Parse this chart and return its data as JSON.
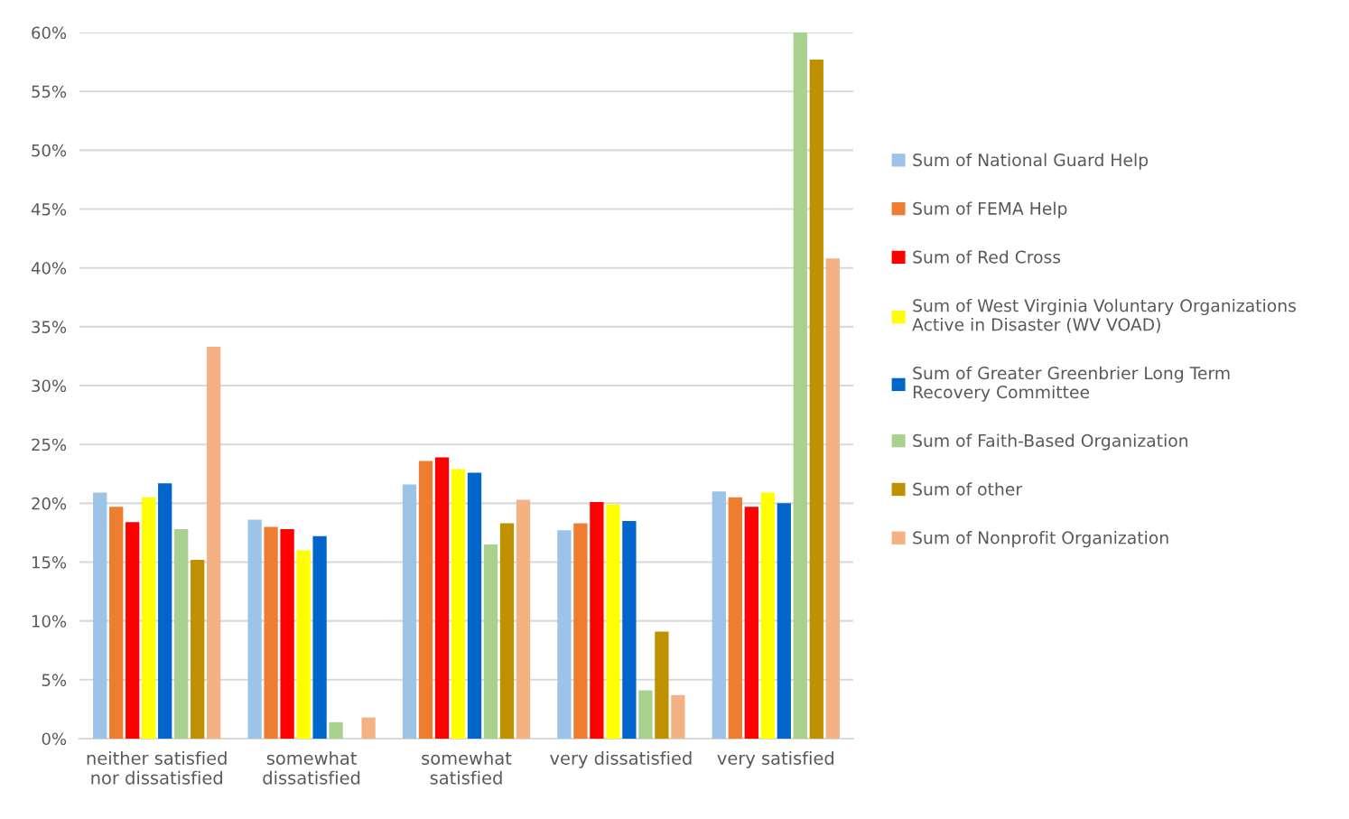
{
  "chart_data": {
    "type": "bar",
    "categories": [
      "neither satisfied\nnor dissatisfied",
      "somewhat\ndissatisfied",
      "somewhat\nsatisfied",
      "very dissatisfied",
      "very satisfied"
    ],
    "series": [
      {
        "name": "Sum of National Guard Help",
        "color": "#9dc3e6",
        "values": [
          20.9,
          18.6,
          21.6,
          17.7,
          21.0
        ]
      },
      {
        "name": "Sum of FEMA Help",
        "color": "#ed7d31",
        "values": [
          19.7,
          18.0,
          23.6,
          18.3,
          20.5
        ]
      },
      {
        "name": "Sum of Red Cross",
        "color": "#ff0000",
        "values": [
          18.4,
          17.8,
          23.9,
          20.1,
          19.7
        ]
      },
      {
        "name": "Sum of West Virginia Voluntary Organizations\nActive in Disaster (WV VOAD)",
        "color": "#ffff00",
        "values": [
          20.5,
          16.0,
          22.9,
          19.9,
          20.9
        ]
      },
      {
        "name": "Sum of Greater Greenbrier Long Term\nRecovery Committee",
        "color": "#0066cc",
        "values": [
          21.7,
          17.2,
          22.6,
          18.5,
          20.0
        ]
      },
      {
        "name": "Sum of Faith-Based Organization",
        "color": "#a9d18e",
        "values": [
          17.8,
          1.4,
          16.5,
          4.1,
          60.0
        ]
      },
      {
        "name": "Sum of other",
        "color": "#bf9000",
        "values": [
          15.2,
          null,
          18.3,
          9.1,
          57.7
        ]
      },
      {
        "name": "Sum of Nonprofit Organization",
        "color": "#f4b183",
        "values": [
          33.3,
          1.8,
          20.3,
          3.7,
          40.8
        ]
      }
    ],
    "ylim": [
      0,
      60
    ],
    "yticks": [
      {
        "value": 0,
        "label": "0%"
      },
      {
        "value": 5,
        "label": "5%"
      },
      {
        "value": 10,
        "label": "10%"
      },
      {
        "value": 15,
        "label": "15%"
      },
      {
        "value": 20,
        "label": "20%"
      },
      {
        "value": 25,
        "label": "25%"
      },
      {
        "value": 30,
        "label": "30%"
      },
      {
        "value": 35,
        "label": "35%"
      },
      {
        "value": 40,
        "label": "40%"
      },
      {
        "value": 45,
        "label": "45%"
      },
      {
        "value": 50,
        "label": "50%"
      },
      {
        "value": 55,
        "label": "55%"
      },
      {
        "value": 60,
        "label": "60%"
      }
    ],
    "grid": "y",
    "legend": "right"
  }
}
